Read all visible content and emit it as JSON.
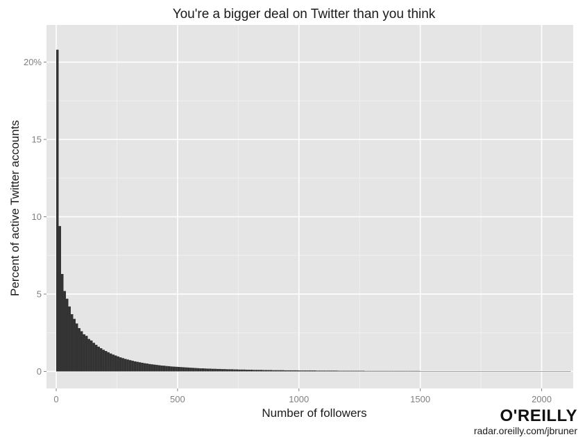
{
  "chart_data": {
    "type": "bar",
    "title": "You're a bigger deal on Twitter than you think",
    "xlabel": "Number of followers",
    "ylabel": "Percent of active Twitter accounts",
    "xlim": [
      -40,
      2130
    ],
    "ylim": [
      -1.1,
      22.4
    ],
    "x_ticks": [
      {
        "value": 0,
        "label": "0"
      },
      {
        "value": 500,
        "label": "500"
      },
      {
        "value": 1000,
        "label": "1000"
      },
      {
        "value": 1500,
        "label": "1500"
      },
      {
        "value": 2000,
        "label": "2000"
      }
    ],
    "y_ticks": [
      {
        "value": 0,
        "label": "0"
      },
      {
        "value": 5,
        "label": "5"
      },
      {
        "value": 10,
        "label": "10"
      },
      {
        "value": 15,
        "label": "15"
      },
      {
        "value": 20,
        "label": "20%"
      }
    ],
    "bin_width": 10,
    "bin_start": 0,
    "values": [
      20.8,
      9.4,
      6.3,
      5.2,
      4.7,
      4.2,
      3.7,
      3.4,
      3.1,
      2.8,
      2.6,
      2.4,
      2.3,
      2.1,
      2.0,
      1.85,
      1.72,
      1.6,
      1.5,
      1.4,
      1.32,
      1.24,
      1.16,
      1.09,
      1.03,
      0.97,
      0.91,
      0.86,
      0.81,
      0.77,
      0.73,
      0.69,
      0.65,
      0.62,
      0.59,
      0.56,
      0.53,
      0.51,
      0.48,
      0.46,
      0.44,
      0.42,
      0.4,
      0.38,
      0.37,
      0.35,
      0.34,
      0.32,
      0.31,
      0.3,
      0.29,
      0.28,
      0.27,
      0.26,
      0.25,
      0.24,
      0.23,
      0.22,
      0.21,
      0.2,
      0.2,
      0.19,
      0.18,
      0.18,
      0.17,
      0.17,
      0.16,
      0.16,
      0.15,
      0.15,
      0.14,
      0.14,
      0.14,
      0.13,
      0.13,
      0.12,
      0.12,
      0.12,
      0.11,
      0.11,
      0.11,
      0.1,
      0.1,
      0.1,
      0.1,
      0.09,
      0.09,
      0.09,
      0.09,
      0.08,
      0.08,
      0.08,
      0.08,
      0.08,
      0.07,
      0.07,
      0.07,
      0.07,
      0.07,
      0.07,
      0.06,
      0.06,
      0.06,
      0.06,
      0.06,
      0.06,
      0.06,
      0.05,
      0.05,
      0.05,
      0.05,
      0.05,
      0.05,
      0.05,
      0.05,
      0.05,
      0.04,
      0.04,
      0.04,
      0.04,
      0.04,
      0.04,
      0.04,
      0.04,
      0.04,
      0.04,
      0.04,
      0.03,
      0.03,
      0.03,
      0.03,
      0.03,
      0.03,
      0.03,
      0.03,
      0.03,
      0.03,
      0.03,
      0.03,
      0.03,
      0.03,
      0.03,
      0.03,
      0.03,
      0.03,
      0.03,
      0.03,
      0.03,
      0.03,
      0.03,
      0.02,
      0.02,
      0.02,
      0.02,
      0.02,
      0.02,
      0.02,
      0.02,
      0.02,
      0.02,
      0.02,
      0.02,
      0.02,
      0.02,
      0.02,
      0.02,
      0.02,
      0.02,
      0.02,
      0.02,
      0.02,
      0.02,
      0.02,
      0.02,
      0.02,
      0.02,
      0.02,
      0.02,
      0.02,
      0.02,
      0.02,
      0.02,
      0.02,
      0.02,
      0.02,
      0.02,
      0.02,
      0.02,
      0.02,
      0.02,
      0.02,
      0.02,
      0.02,
      0.02,
      0.02,
      0.02,
      0.02,
      0.02,
      0.02,
      0.02,
      0.02,
      0.02,
      0.02,
      0.02,
      0.02,
      0.02,
      0.02,
      0.02,
      0.02,
      0.02,
      0.02,
      0.02
    ],
    "grid": true,
    "legend": "none"
  },
  "branding": {
    "logo": "O'REILLY",
    "source": "radar.oreilly.com/jbruner"
  },
  "colors": {
    "panel_background": "#e5e5e5",
    "grid_major": "#ffffff",
    "grid_minor": "#f0f0f0",
    "bar_fill": "#333333"
  }
}
